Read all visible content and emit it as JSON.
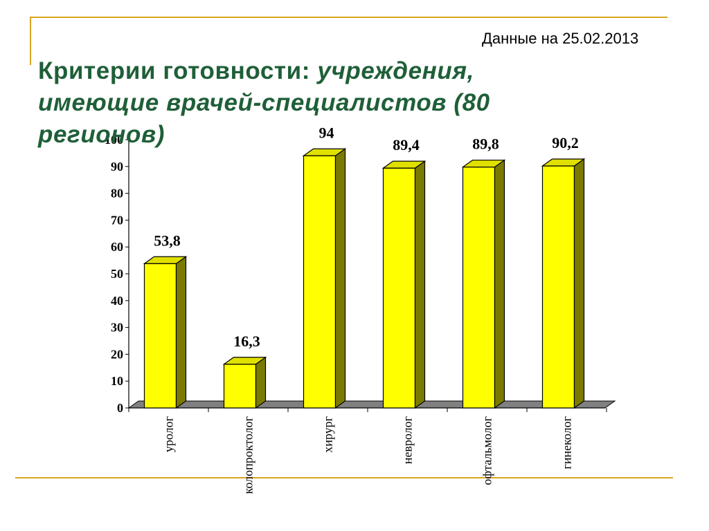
{
  "header": {
    "date_note": "Данные на 25.02.2013",
    "title_plain": "Критерии готовности: ",
    "title_italic": "учреждения, имеющие врачей-специалистов (80 регионов)"
  },
  "colors": {
    "accent_rule": "#d9a520",
    "title_green": "#1f5f38",
    "bar_front": "#ffff00",
    "bar_top": "#e0e000",
    "bar_side": "#7a7a00",
    "floor": "#808080"
  },
  "chart_data": {
    "type": "bar",
    "style": "3d-columns",
    "categories": [
      "уролог",
      "колопроктолог",
      "хирург",
      "невролог",
      "офтальмолог",
      "гинеколог"
    ],
    "values": [
      53.8,
      16.3,
      94,
      89.4,
      89.8,
      90.2
    ],
    "value_labels": [
      "53,8",
      "16,3",
      "94",
      "89,4",
      "89,8",
      "90,2"
    ],
    "ylim": [
      0,
      100
    ],
    "yticks": [
      0,
      10,
      20,
      30,
      40,
      50,
      60,
      70,
      80,
      90,
      100
    ],
    "grid": false,
    "legend": "none",
    "category_label_orientation": "vertical"
  }
}
